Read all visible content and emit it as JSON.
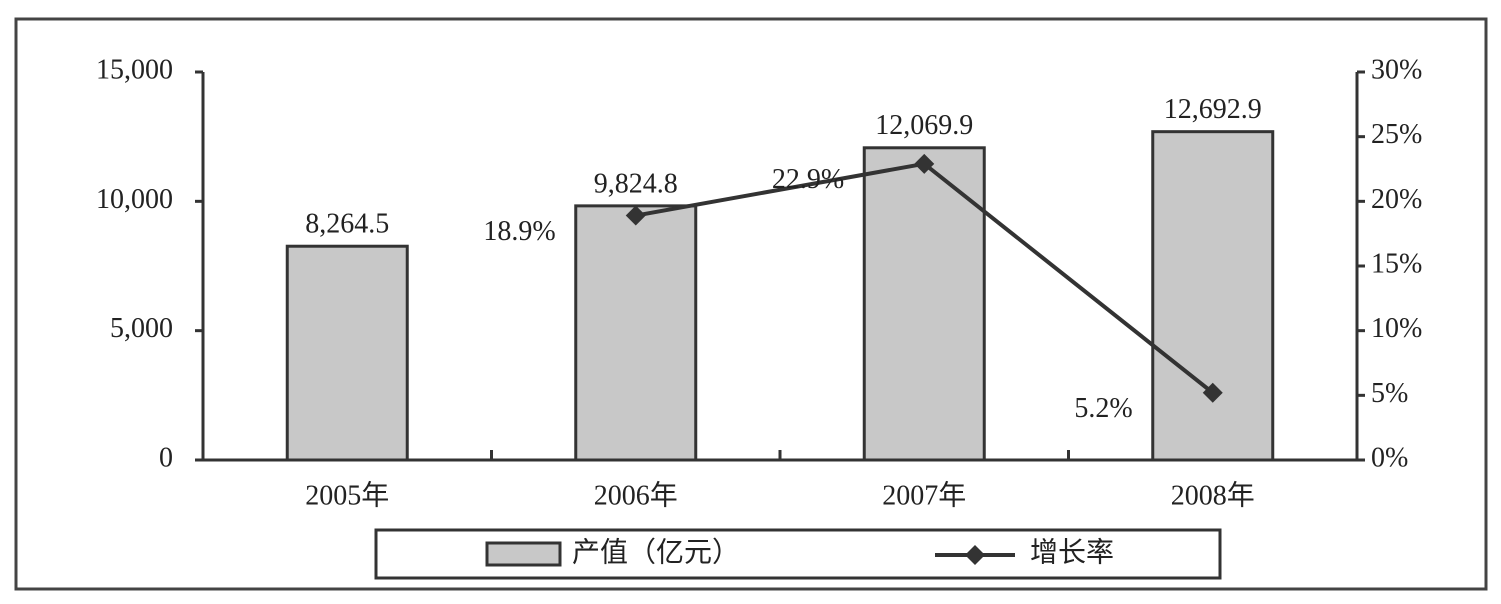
{
  "chart_data": {
    "type": "bar-line",
    "categories": [
      "2005年",
      "2006年",
      "2007年",
      "2008年"
    ],
    "series": [
      {
        "name": "产值（亿元）",
        "type": "bar",
        "color": "#c8c8c8",
        "values": [
          8264.5,
          9824.8,
          12069.9,
          12692.9
        ],
        "value_labels": [
          "8,264.5",
          "9,824.8",
          "12,069.9",
          "12,692.9"
        ]
      },
      {
        "name": "增长率",
        "type": "line",
        "axis": "y2",
        "color": "#333333",
        "values": [
          null,
          18.9,
          22.9,
          5.2
        ],
        "value_labels": [
          null,
          "18.9%",
          "22.9%",
          "5.2%"
        ]
      }
    ],
    "ylim": [
      0,
      15000
    ],
    "yticks": [
      0,
      {
        "value": 5000,
        "label": "5,000"
      },
      {
        "value": 10000,
        "label": "10,000"
      },
      {
        "value": 15000,
        "label": "15,000"
      }
    ],
    "y2lim": [
      0,
      30
    ],
    "y2ticks": [
      {
        "value": 0,
        "label": "0%"
      },
      {
        "value": 5,
        "label": "5%"
      },
      {
        "value": 10,
        "label": "10%"
      },
      {
        "value": 15,
        "label": "15%"
      },
      {
        "value": 20,
        "label": "20%"
      },
      {
        "value": 25,
        "label": "25%"
      },
      {
        "value": 30,
        "label": "30%"
      }
    ],
    "legend": "bottom"
  }
}
